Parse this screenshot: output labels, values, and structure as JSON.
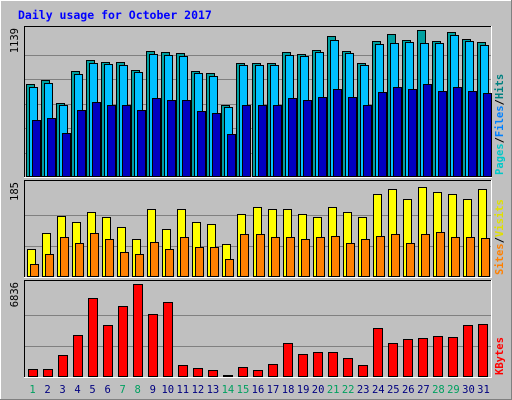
{
  "chart_data": {
    "type": "bar",
    "title": "Daily usage for October 2017",
    "categories": [
      "1",
      "2",
      "3",
      "4",
      "5",
      "6",
      "7",
      "8",
      "9",
      "10",
      "11",
      "12",
      "13",
      "14",
      "15",
      "16",
      "17",
      "18",
      "19",
      "20",
      "21",
      "22",
      "23",
      "24",
      "25",
      "26",
      "27",
      "28",
      "29",
      "30",
      "31"
    ],
    "weekend_days": [
      "1",
      "7",
      "8",
      "14",
      "15",
      "21",
      "22",
      "28",
      "29"
    ],
    "panels": [
      {
        "id": "hits",
        "max_label": "1139",
        "ylim": [
          0,
          1139
        ],
        "side_labels": [
          {
            "text": "Pages",
            "color": "#00c8c8"
          },
          {
            "text": "Files",
            "color": "#0080ff"
          },
          {
            "text": "Hits",
            "color": "#008080"
          }
        ],
        "series": [
          {
            "name": "Hits",
            "color": "#00a0a0",
            "values": [
              720,
              750,
              570,
              820,
              905,
              890,
              890,
              830,
              975,
              965,
              960,
              825,
              805,
              560,
              885,
              885,
              885,
              965,
              955,
              985,
              1090,
              980,
              885,
              1050,
              1105,
              1065,
              1139,
              1055,
              1120,
              1070,
              1045
            ]
          },
          {
            "name": "Files",
            "color": "#00c0ff",
            "values": [
              700,
              730,
              555,
              800,
              885,
              875,
              870,
              810,
              955,
              945,
              940,
              805,
              785,
              545,
              865,
              865,
              870,
              945,
              935,
              965,
              1060,
              960,
              865,
              1030,
              1040,
              1045,
              1035,
              1040,
              1100,
              1050,
              1025
            ]
          },
          {
            "name": "Pages",
            "color": "#0000c0",
            "values": [
              440,
              460,
              340,
              520,
              580,
              560,
              560,
              520,
              610,
              600,
              600,
              510,
              495,
              330,
              560,
              560,
              560,
              610,
              600,
              620,
              680,
              620,
              560,
              660,
              700,
              680,
              720,
              670,
              700,
              670,
              650
            ]
          }
        ]
      },
      {
        "id": "visits",
        "max_label": "185",
        "ylim": [
          0,
          185
        ],
        "side_labels": [
          {
            "text": "Sites",
            "color": "#ff8000"
          },
          {
            "text": "Visits",
            "color": "#e0e000"
          }
        ],
        "series": [
          {
            "name": "Visits",
            "color": "#ffff00",
            "values": [
              55,
              88,
              122,
              110,
              130,
              120,
              100,
              75,
              135,
              95,
              135,
              110,
              105,
              65,
              125,
              140,
              135,
              135,
              125,
              120,
              140,
              130,
              120,
              165,
              175,
              155,
              180,
              170,
              165,
              155,
              175
            ]
          },
          {
            "name": "Sites",
            "color": "#ff8000",
            "values": [
              25,
              45,
              80,
              68,
              88,
              75,
              50,
              45,
              70,
              55,
              80,
              60,
              60,
              35,
              85,
              85,
              80,
              80,
              75,
              80,
              82,
              68,
              75,
              82,
              85,
              68,
              85,
              90,
              80,
              80,
              78
            ]
          }
        ]
      },
      {
        "id": "kbytes",
        "max_label": "6836",
        "ylim": [
          0,
          6836
        ],
        "side_labels": [
          {
            "text": "KBytes",
            "color": "#ff0000"
          }
        ],
        "series": [
          {
            "name": "KBytes",
            "color": "#ff0000",
            "values": [
              600,
              560,
              1600,
              3100,
              5800,
              3800,
              5200,
              6836,
              4600,
              5500,
              850,
              650,
              520,
              150,
              750,
              480,
              940,
              2500,
              1700,
              1850,
              1850,
              1400,
              850,
              3600,
              2500,
              2800,
              2900,
              3000,
              2950,
              3800,
              3900
            ]
          }
        ]
      }
    ],
    "colors": {
      "background": "#c0c0c0",
      "title": "#0000ff",
      "weekday_label": "#000080",
      "weekend_label": "#00a060"
    }
  }
}
